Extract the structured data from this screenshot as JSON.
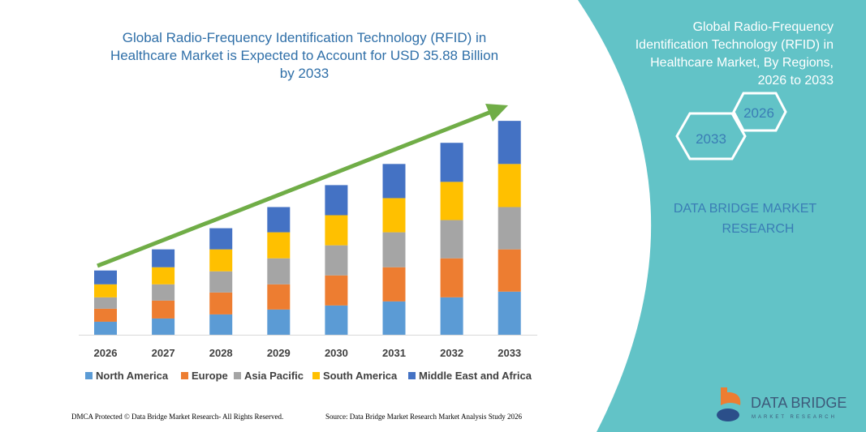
{
  "chart_data": {
    "type": "bar",
    "stacked": true,
    "title": "Global Radio-Frequency Identification Technology (RFID) in Healthcare Market is Expected to Account for USD 35.88 Billion by 2033",
    "title_lines": [
      "Global Radio-Frequency Identification Technology (RFID) in",
      "Healthcare Market is Expected to Account for USD 35.88 Billion",
      "by 2033"
    ],
    "categories": [
      "2026",
      "2027",
      "2028",
      "2029",
      "2030",
      "2031",
      "2032",
      "2033"
    ],
    "series": [
      {
        "name": "North America",
        "color": "#5b9bd5",
        "values": [
          16,
          20,
          25,
          31,
          36,
          41,
          46,
          53
        ]
      },
      {
        "name": "Europe",
        "color": "#ed7d31",
        "values": [
          16,
          22,
          27,
          31,
          37,
          42,
          48,
          52
        ]
      },
      {
        "name": "Asia Pacific",
        "color": "#a5a5a5",
        "values": [
          14,
          20,
          26,
          32,
          37,
          43,
          47,
          52
        ]
      },
      {
        "name": "South America",
        "color": "#ffc000",
        "values": [
          16,
          21,
          27,
          32,
          37,
          42,
          47,
          53
        ]
      },
      {
        "name": "Middle East and Africa",
        "color": "#4472c4",
        "values": [
          17,
          22,
          26,
          31,
          37,
          42,
          48,
          53
        ]
      }
    ],
    "ylim": [
      0,
      270
    ],
    "grid": false,
    "legend": "bottom",
    "trend_arrow_color": "#70ad47"
  },
  "panel": {
    "title_lines": [
      "Global Radio-Frequency",
      "Identification Technology (RFID) in",
      "Healthcare Market, By Regions,",
      "2026 to 2033"
    ],
    "hex_start": "2026",
    "hex_end": "2033",
    "brand_lines": [
      "DATA BRIDGE MARKET",
      "RESEARCH"
    ],
    "logo_text": "DATA BRIDGE",
    "logo_sub": "MARKET RESEARCH",
    "bg_color": "#62c3c7"
  },
  "footer": {
    "left": "DMCA Protected © Data Bridge Market Research- All Rights Reserved.",
    "right": "Source: Data Bridge Market Research Market Analysis Study 2026"
  }
}
